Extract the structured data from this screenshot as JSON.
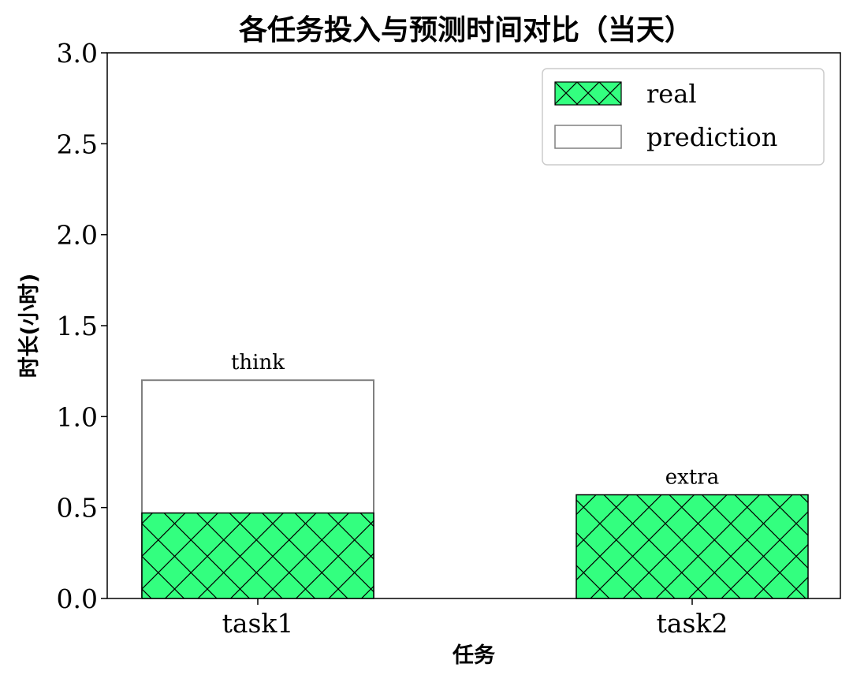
{
  "chart_data": {
    "type": "bar",
    "title": "各任务投入与预测时间对比（当天）",
    "xlabel": "任务",
    "ylabel": "时长(小时)",
    "categories": [
      "task1",
      "task2"
    ],
    "series": [
      {
        "name": "real",
        "values": [
          0.47,
          0.57
        ],
        "color": "#33ff7f",
        "hatch": "crosshatch-diagonal"
      },
      {
        "name": "prediction",
        "values": [
          1.2,
          null
        ],
        "color": "#ffffff",
        "edge_color": "#808080"
      }
    ],
    "annotations": [
      "think",
      "extra"
    ],
    "ylim": [
      0,
      3.0
    ],
    "yticks": [
      "0.0",
      "0.5",
      "1.0",
      "1.5",
      "2.0",
      "2.5",
      "3.0"
    ],
    "grid": false,
    "legend_position": "top-right"
  }
}
